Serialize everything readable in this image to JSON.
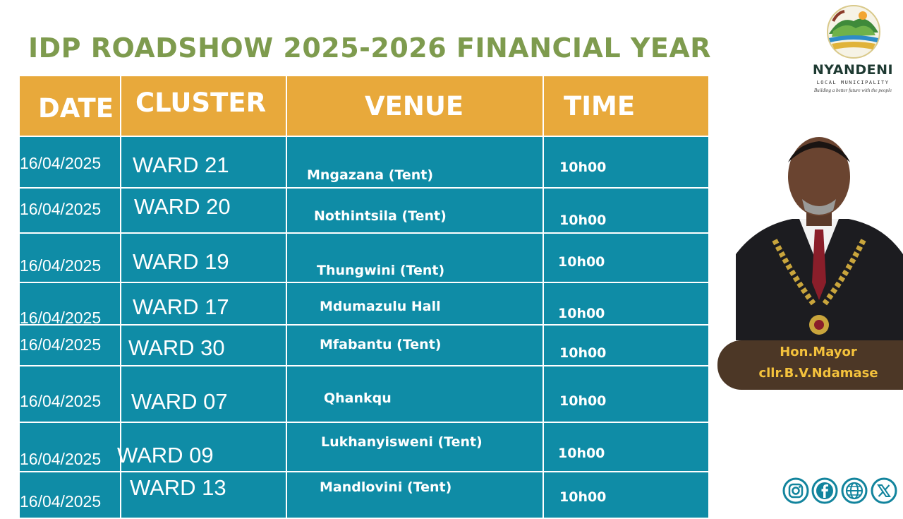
{
  "title": "IDP ROADSHOW 2025-2026 FINANCIAL YEAR",
  "table": {
    "headers": [
      "DATE",
      "CLUSTER",
      "VENUE",
      "TIME"
    ],
    "rows": [
      {
        "date": "16/04/2025",
        "ward": "WARD 21",
        "venue": "Mngazana (Tent)",
        "time": "10h00"
      },
      {
        "date": "16/04/2025",
        "ward": "WARD 20",
        "venue": "Nothintsila (Tent)",
        "time": "10h00"
      },
      {
        "date": "16/04/2025",
        "ward": "WARD 19",
        "venue": "Thungwini (Tent)",
        "time": "10h00"
      },
      {
        "date": "16/04/2025",
        "ward": "WARD 17",
        "venue": "Mdumazulu Hall",
        "time": "10h00"
      },
      {
        "date": "16/04/2025",
        "ward": "WARD 30",
        "venue": "Mfabantu (Tent)",
        "time": "10h00"
      },
      {
        "date": "16/04/2025",
        "ward": "WARD 07",
        "venue": "Qhankqu",
        "time": "10h00"
      },
      {
        "date": "16/04/2025",
        "ward": "WARD 09",
        "venue": "Lukhanyisweni (Tent)",
        "time": "10h00"
      },
      {
        "date": "16/04/2025",
        "ward": "WARD 13",
        "venue": "Mandlovini (Tent)",
        "time": "10h00"
      }
    ]
  },
  "logo": {
    "name": "NYANDENI",
    "subtitle": "LOCAL MUNICIPALITY",
    "tagline": "Building a better future with the people"
  },
  "mayor": {
    "title": "Hon.Mayor",
    "name": "cllr.B.V.Ndamase"
  },
  "social": {
    "icons": [
      "instagram-icon",
      "facebook-icon",
      "globe-icon",
      "x-icon"
    ]
  },
  "colors": {
    "title": "#7e9b4e",
    "header_bg": "#e8a93b",
    "row_bg": "#0f8ca6",
    "mayor_bar": "#4c3726",
    "mayor_text": "#f4c23c",
    "social": "#12849d"
  }
}
